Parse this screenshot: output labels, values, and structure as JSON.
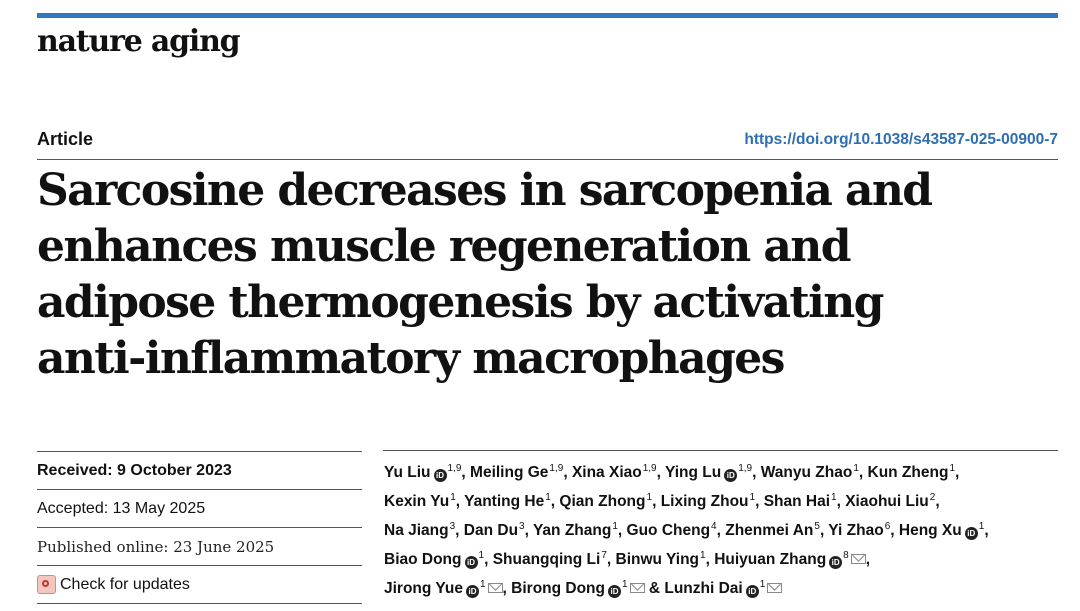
{
  "journal": "nature aging",
  "article_type": "Article",
  "doi": "https://doi.org/10.1038/s43587-025-00900-7",
  "title_lines": [
    "Sarcosine decreases in sarcopenia and",
    "enhances muscle regeneration and",
    "adipose thermogenesis by activating",
    "anti-inflammatory macrophages"
  ],
  "dates": {
    "received_label": "Received:",
    "received_value": "9 October 2023",
    "accepted_label": "Accepted:",
    "accepted_value": "13 May 2025",
    "published": "Published online: 23 June 2025",
    "check_updates": "Check for updates"
  },
  "author_lines": [
    [
      {
        "name": "Yu Liu",
        "orcid": true,
        "sup": "1,9",
        "sep": ","
      },
      {
        "name": "Meiling Ge",
        "sup": "1,9",
        "sep": ","
      },
      {
        "name": "Xina Xiao",
        "sup": "1,9",
        "sep": ","
      },
      {
        "name": "Ying Lu",
        "orcid": true,
        "sup": "1,9",
        "sep": ","
      },
      {
        "name": "Wanyu Zhao",
        "sup": "1",
        "sep": ","
      },
      {
        "name": "Kun Zheng",
        "sup": "1",
        "sep": ","
      }
    ],
    [
      {
        "name": "Kexin Yu",
        "sup": "1",
        "sep": ","
      },
      {
        "name": "Yanting He",
        "sup": "1",
        "sep": ","
      },
      {
        "name": "Qian Zhong",
        "sup": "1",
        "sep": ","
      },
      {
        "name": "Lixing Zhou",
        "sup": "1",
        "sep": ","
      },
      {
        "name": "Shan Hai",
        "sup": "1",
        "sep": ","
      },
      {
        "name": "Xiaohui Liu",
        "sup": "2",
        "sep": ","
      }
    ],
    [
      {
        "name": "Na Jiang",
        "sup": "3",
        "sep": ","
      },
      {
        "name": "Dan Du",
        "sup": "3",
        "sep": ","
      },
      {
        "name": "Yan Zhang",
        "sup": "1",
        "sep": ","
      },
      {
        "name": "Guo Cheng",
        "sup": "4",
        "sep": ","
      },
      {
        "name": "Zhenmei An",
        "sup": "5",
        "sep": ","
      },
      {
        "name": "Yi Zhao",
        "sup": "6",
        "sep": ","
      },
      {
        "name": "Heng Xu",
        "orcid": true,
        "sup": "1",
        "sep": ","
      }
    ],
    [
      {
        "name": "Biao Dong",
        "orcid": true,
        "sup": "1",
        "sep": ","
      },
      {
        "name": "Shuangqing Li",
        "sup": "7",
        "sep": ","
      },
      {
        "name": "Binwu Ying",
        "sup": "1",
        "sep": ","
      },
      {
        "name": "Huiyuan Zhang",
        "orcid": true,
        "sup": "8",
        "mail": true,
        "sep": ","
      }
    ],
    [
      {
        "name": "Jirong Yue",
        "orcid": true,
        "sup": "1",
        "mail": true,
        "sep": ","
      },
      {
        "name": "Birong Dong",
        "orcid": true,
        "sup": "1",
        "mail": true,
        "sep": " &"
      },
      {
        "name": "Lunzhi Dai",
        "orcid": true,
        "sup": "1",
        "mail": true,
        "sep": ""
      }
    ]
  ],
  "icons": {
    "orcid": "orcid-icon",
    "mail": "envelope-icon",
    "updates": "check-for-updates-icon"
  },
  "colors": {
    "accent_bar": "#2f77c1",
    "doi_link": "#2f6eb0"
  }
}
